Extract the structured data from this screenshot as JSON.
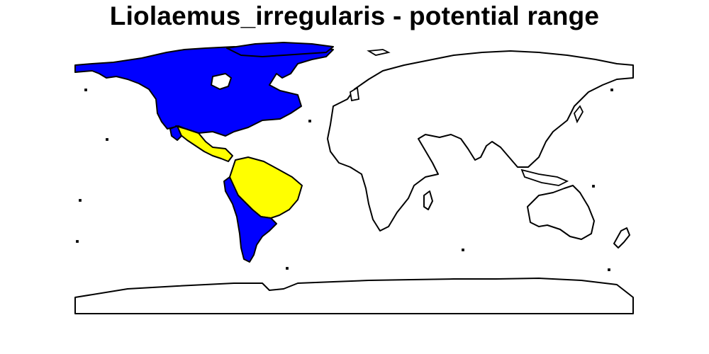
{
  "title": "Liolaemus_irregularis - potential range",
  "colors": {
    "range_primary": "#0000ff",
    "range_secondary": "#ffff00",
    "land": "#ffffff",
    "outline": "#000000"
  }
}
